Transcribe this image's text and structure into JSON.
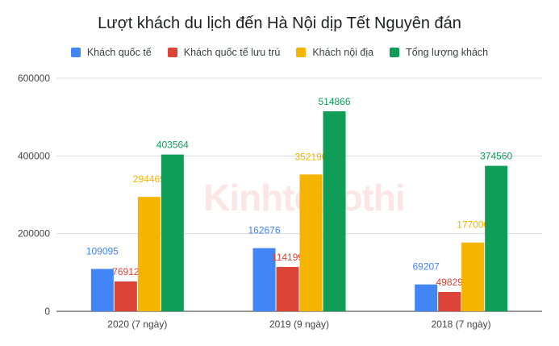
{
  "title": "Lượt khách du lịch đến Hà Nội dịp Tết Nguyên đán",
  "watermark": "KinhteĐothi",
  "chart_data": {
    "type": "bar",
    "title": "Lượt khách du lịch đến Hà Nội dịp Tết Nguyên đán",
    "xlabel": "",
    "ylabel": "",
    "ylim": [
      0,
      600000
    ],
    "yticks": [
      "0",
      "200000",
      "400000",
      "600000"
    ],
    "grid": true,
    "legend_position": "top",
    "categories": [
      "2020 (7 ngày)",
      "2019 (9 ngày)",
      "2018 (7 ngày)"
    ],
    "series": [
      {
        "name": "Khách quốc tế",
        "color": "#4285f4",
        "values": [
          109095,
          162676,
          69207
        ]
      },
      {
        "name": "Khách quốc tế lưu trú",
        "color": "#db4437",
        "values": [
          76912,
          114199,
          49829
        ]
      },
      {
        "name": "Khách nội địa",
        "color": "#f4b400",
        "values": [
          294469,
          352190,
          177000
        ]
      },
      {
        "name": "Tổng lượng khách",
        "color": "#0f9d58",
        "values": [
          403564,
          514866,
          374560
        ]
      }
    ]
  }
}
